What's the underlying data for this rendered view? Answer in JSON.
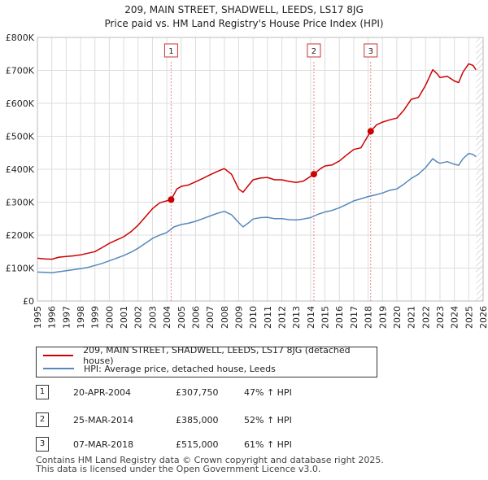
{
  "chart_data": {
    "type": "line",
    "title": "209, MAIN STREET, SHADWELL, LEEDS, LS17 8JG",
    "subtitle": "Price paid vs. HM Land Registry's House Price Index (HPI)",
    "xlabel": "",
    "ylabel": "",
    "xlim": [
      1995,
      2026
    ],
    "ylim": [
      0,
      800000
    ],
    "x_ticks": [
      "1995",
      "1996",
      "1997",
      "1998",
      "1999",
      "2000",
      "2001",
      "2002",
      "2003",
      "2004",
      "2005",
      "2006",
      "2007",
      "2008",
      "2009",
      "2010",
      "2011",
      "2012",
      "2013",
      "2014",
      "2015",
      "2016",
      "2017",
      "2018",
      "2019",
      "2020",
      "2021",
      "2022",
      "2023",
      "2024",
      "2025",
      "2026"
    ],
    "y_ticks": [
      {
        "value": 0,
        "label": "£0"
      },
      {
        "value": 100000,
        "label": "£100K"
      },
      {
        "value": 200000,
        "label": "£200K"
      },
      {
        "value": 300000,
        "label": "£300K"
      },
      {
        "value": 400000,
        "label": "£400K"
      },
      {
        "value": 500000,
        "label": "£500K"
      },
      {
        "value": 600000,
        "label": "£600K"
      },
      {
        "value": 700000,
        "label": "£700K"
      },
      {
        "value": 800000,
        "label": "£800K"
      }
    ],
    "grid": true,
    "series": [
      {
        "name": "209, MAIN STREET, SHADWELL, LEEDS, LS17 8JG (detached house)",
        "color": "#cc0000",
        "points": [
          [
            1995,
            130000
          ],
          [
            1995.5,
            128000
          ],
          [
            1996,
            127000
          ],
          [
            1996.5,
            133000
          ],
          [
            1997,
            135000
          ],
          [
            1997.5,
            137000
          ],
          [
            1998,
            140000
          ],
          [
            1998.5,
            145000
          ],
          [
            1999,
            150000
          ],
          [
            1999.5,
            162000
          ],
          [
            2000,
            175000
          ],
          [
            2000.5,
            185000
          ],
          [
            2001,
            195000
          ],
          [
            2001.5,
            210000
          ],
          [
            2002,
            230000
          ],
          [
            2002.5,
            255000
          ],
          [
            2003,
            280000
          ],
          [
            2003.5,
            298000
          ],
          [
            2004.3,
            307750
          ],
          [
            2004.7,
            340000
          ],
          [
            2005,
            348000
          ],
          [
            2005.5,
            352000
          ],
          [
            2006,
            362000
          ],
          [
            2006.5,
            372000
          ],
          [
            2007,
            383000
          ],
          [
            2007.5,
            393000
          ],
          [
            2008,
            402000
          ],
          [
            2008.5,
            385000
          ],
          [
            2009,
            340000
          ],
          [
            2009.3,
            330000
          ],
          [
            2009.7,
            352000
          ],
          [
            2010,
            368000
          ],
          [
            2010.5,
            373000
          ],
          [
            2011,
            375000
          ],
          [
            2011.5,
            368000
          ],
          [
            2012,
            368000
          ],
          [
            2012.5,
            363000
          ],
          [
            2013,
            360000
          ],
          [
            2013.5,
            364000
          ],
          [
            2014.23,
            385000
          ],
          [
            2014.7,
            402000
          ],
          [
            2015,
            410000
          ],
          [
            2015.5,
            413000
          ],
          [
            2016,
            425000
          ],
          [
            2016.5,
            443000
          ],
          [
            2017,
            460000
          ],
          [
            2017.5,
            465000
          ],
          [
            2018.18,
            515000
          ],
          [
            2018.6,
            535000
          ],
          [
            2019,
            543000
          ],
          [
            2019.5,
            550000
          ],
          [
            2020,
            555000
          ],
          [
            2020.5,
            580000
          ],
          [
            2021,
            612000
          ],
          [
            2021.5,
            618000
          ],
          [
            2022,
            655000
          ],
          [
            2022.5,
            702000
          ],
          [
            2022.8,
            690000
          ],
          [
            2023,
            678000
          ],
          [
            2023.5,
            682000
          ],
          [
            2024,
            668000
          ],
          [
            2024.3,
            663000
          ],
          [
            2024.6,
            695000
          ],
          [
            2025,
            720000
          ],
          [
            2025.3,
            715000
          ],
          [
            2025.5,
            702000
          ]
        ]
      },
      {
        "name": "HPI: Average price, detached house, Leeds",
        "color": "#5588bb",
        "points": [
          [
            1995,
            88000
          ],
          [
            1995.5,
            87000
          ],
          [
            1996,
            86000
          ],
          [
            1996.5,
            89000
          ],
          [
            1997,
            92000
          ],
          [
            1997.5,
            95000
          ],
          [
            1998,
            98000
          ],
          [
            1998.5,
            102000
          ],
          [
            1999,
            108000
          ],
          [
            1999.5,
            114000
          ],
          [
            2000,
            122000
          ],
          [
            2000.5,
            130000
          ],
          [
            2001,
            138000
          ],
          [
            2001.5,
            148000
          ],
          [
            2002,
            160000
          ],
          [
            2002.5,
            175000
          ],
          [
            2003,
            190000
          ],
          [
            2003.5,
            200000
          ],
          [
            2004,
            208000
          ],
          [
            2004.5,
            225000
          ],
          [
            2005,
            232000
          ],
          [
            2005.5,
            236000
          ],
          [
            2006,
            242000
          ],
          [
            2006.5,
            250000
          ],
          [
            2007,
            258000
          ],
          [
            2007.5,
            266000
          ],
          [
            2008,
            272000
          ],
          [
            2008.5,
            262000
          ],
          [
            2009,
            238000
          ],
          [
            2009.3,
            225000
          ],
          [
            2009.7,
            238000
          ],
          [
            2010,
            249000
          ],
          [
            2010.5,
            253000
          ],
          [
            2011,
            254000
          ],
          [
            2011.5,
            250000
          ],
          [
            2012,
            250000
          ],
          [
            2012.5,
            247000
          ],
          [
            2013,
            246000
          ],
          [
            2013.5,
            249000
          ],
          [
            2014,
            253000
          ],
          [
            2014.5,
            263000
          ],
          [
            2015,
            270000
          ],
          [
            2015.5,
            275000
          ],
          [
            2016,
            283000
          ],
          [
            2016.5,
            293000
          ],
          [
            2017,
            304000
          ],
          [
            2017.5,
            310000
          ],
          [
            2018,
            317000
          ],
          [
            2018.5,
            322000
          ],
          [
            2019,
            328000
          ],
          [
            2019.5,
            336000
          ],
          [
            2020,
            340000
          ],
          [
            2020.5,
            355000
          ],
          [
            2021,
            372000
          ],
          [
            2021.5,
            385000
          ],
          [
            2022,
            405000
          ],
          [
            2022.5,
            432000
          ],
          [
            2022.8,
            422000
          ],
          [
            2023,
            418000
          ],
          [
            2023.5,
            423000
          ],
          [
            2024,
            415000
          ],
          [
            2024.3,
            412000
          ],
          [
            2024.6,
            432000
          ],
          [
            2025,
            448000
          ],
          [
            2025.3,
            445000
          ],
          [
            2025.5,
            438000
          ]
        ]
      }
    ],
    "sales": [
      {
        "label": "1",
        "x": 2004.3,
        "value": 307750
      },
      {
        "label": "2",
        "x": 2014.23,
        "value": 385000
      },
      {
        "label": "3",
        "x": 2018.18,
        "value": 515000
      }
    ],
    "hatch_from": 2025.5,
    "legend_placement": "below"
  },
  "legend": {
    "property_label": "209, MAIN STREET, SHADWELL, LEEDS, LS17 8JG (detached house)",
    "hpi_label": "HPI: Average price, detached house, Leeds",
    "property_color": "#cc0000",
    "hpi_color": "#5588bb"
  },
  "transactions": [
    {
      "num": "1",
      "date": "20-APR-2004",
      "price": "£307,750",
      "hpi": "47% ↑ HPI"
    },
    {
      "num": "2",
      "date": "25-MAR-2014",
      "price": "£385,000",
      "hpi": "52% ↑ HPI"
    },
    {
      "num": "3",
      "date": "07-MAR-2018",
      "price": "£515,000",
      "hpi": "61% ↑ HPI"
    }
  ],
  "footer": {
    "line1": "Contains HM Land Registry data © Crown copyright and database right 2025.",
    "line2": "This data is licensed under the Open Government Licence v3.0."
  }
}
